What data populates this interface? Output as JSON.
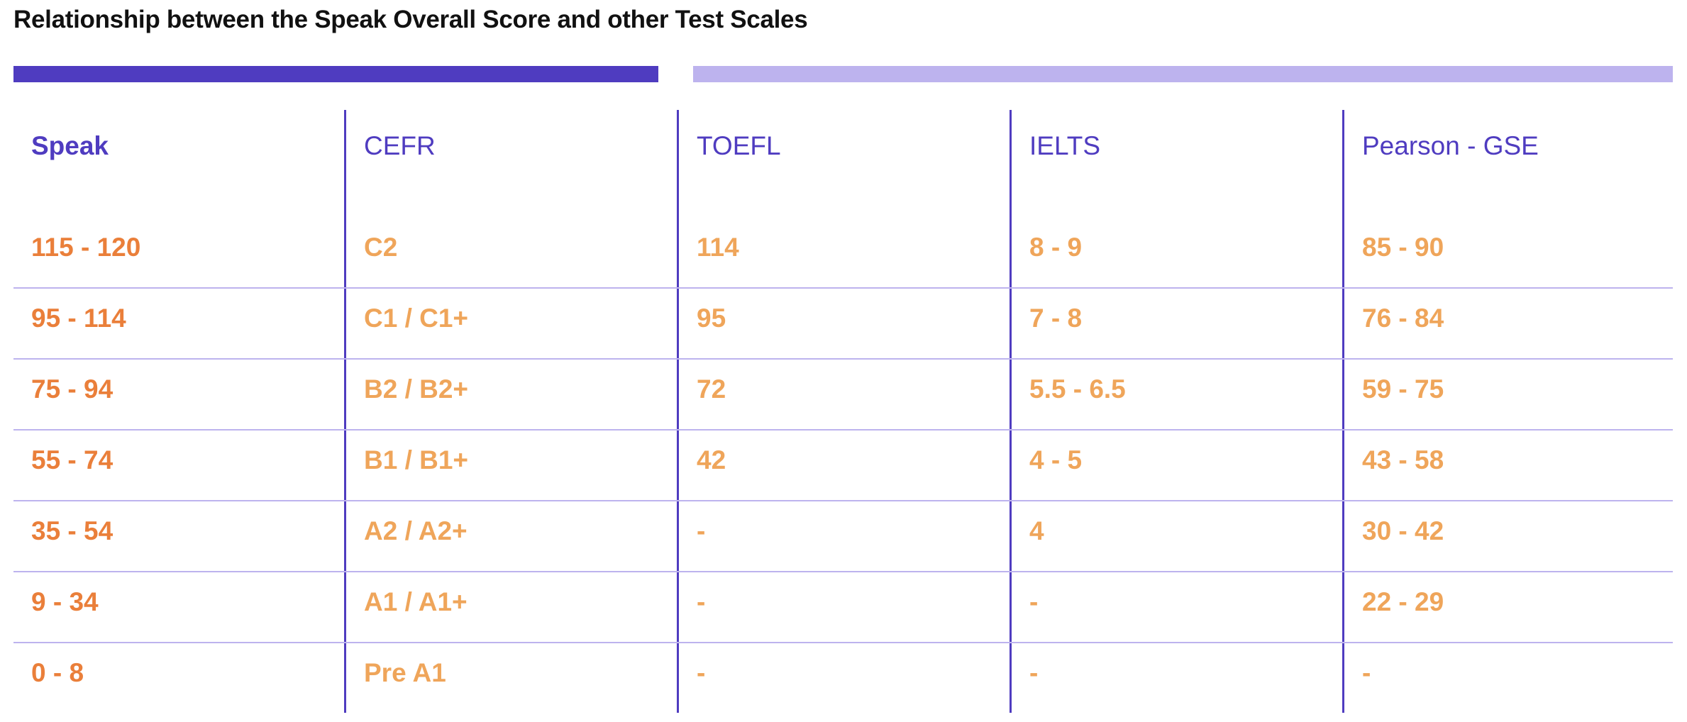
{
  "title": "Relationship between the Speak Overall Score and other Test Scales",
  "colors": {
    "accent_dark": "#4f3cc0",
    "accent_light": "#bdb3ee",
    "speak_value": "#ea7f3a",
    "other_value": "#efa55a"
  },
  "table": {
    "headers": [
      "Speak",
      "CEFR",
      "TOEFL",
      "IELTS",
      "Pearson - GSE"
    ],
    "rows": [
      [
        "115 - 120",
        "C2",
        "114",
        "8 - 9",
        "85 - 90"
      ],
      [
        "95 - 114",
        "C1 / C1+",
        "95",
        "7 - 8",
        "76 - 84"
      ],
      [
        "75 - 94",
        "B2 / B2+",
        "72",
        "5.5 - 6.5",
        "59 - 75"
      ],
      [
        "55 - 74",
        "B1 / B1+",
        "42",
        "4 - 5",
        "43 - 58"
      ],
      [
        "35 - 54",
        "A2 / A2+",
        "-",
        "4",
        "30 - 42"
      ],
      [
        "9 - 34",
        "A1 / A1+",
        "-",
        "-",
        "22 - 29"
      ],
      [
        "0 - 8",
        "Pre A1",
        "-",
        "-",
        "-"
      ]
    ]
  }
}
